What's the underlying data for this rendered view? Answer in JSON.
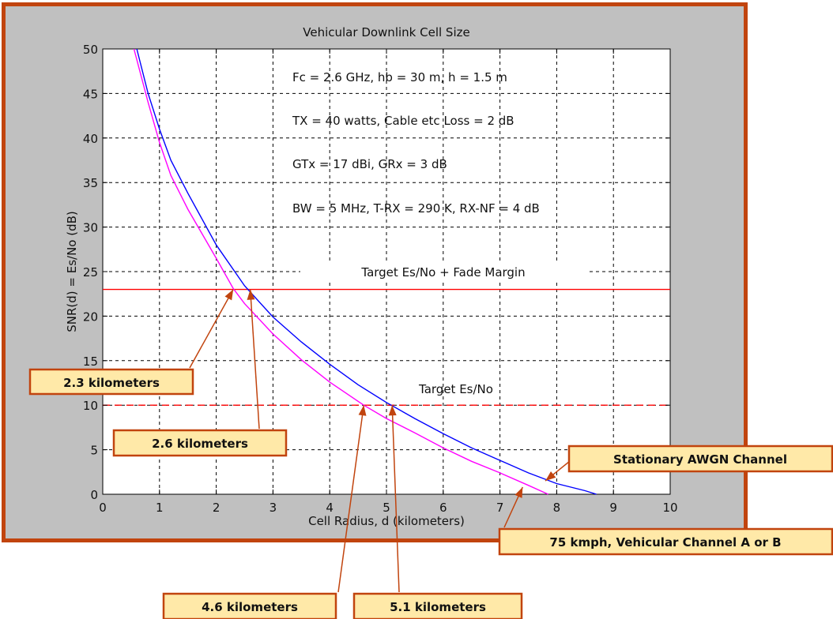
{
  "chart_data": {
    "type": "line",
    "title": "Vehicular Downlink Cell Size",
    "xlabel": "Cell Radius, d   (kilometers)",
    "ylabel": "SNR(d) = Es/No  (dB)",
    "xlim": [
      0,
      10
    ],
    "ylim": [
      0,
      50
    ],
    "xticks": [
      "0",
      "1",
      "2",
      "3",
      "4",
      "5",
      "6",
      "7",
      "8",
      "9",
      "10"
    ],
    "yticks": [
      "0",
      "5",
      "10",
      "15",
      "20",
      "25",
      "30",
      "35",
      "40",
      "45",
      "50"
    ],
    "grid": true,
    "series": [
      {
        "color": "#0000ff",
        "x": [
          0.6,
          0.8,
          1.0,
          1.2,
          1.5,
          2.0,
          2.5,
          3.0,
          3.5,
          4.0,
          4.5,
          5.0,
          5.5,
          6.0,
          6.5,
          7.0,
          7.5,
          8.0,
          8.5,
          8.7
        ],
        "y": [
          50.0,
          45.0,
          41.0,
          37.5,
          33.8,
          28.0,
          23.4,
          19.9,
          17.1,
          14.6,
          12.3,
          10.3,
          8.5,
          6.8,
          5.2,
          3.8,
          2.4,
          1.2,
          0.4,
          0.0
        ]
      },
      {
        "color": "#ff00ff",
        "x": [
          0.55,
          0.8,
          1.0,
          1.2,
          1.5,
          2.0,
          2.3,
          2.5,
          3.0,
          3.5,
          4.0,
          4.6,
          5.0,
          5.5,
          6.0,
          6.5,
          7.0,
          7.5,
          7.85
        ],
        "y": [
          50.0,
          44.0,
          39.5,
          35.8,
          32.0,
          26.5,
          23.1,
          21.4,
          18.0,
          15.1,
          12.6,
          10.0,
          8.5,
          6.9,
          5.2,
          3.7,
          2.4,
          1.0,
          0.0
        ]
      }
    ],
    "reference_lines": [
      {
        "y": 23,
        "style": "solid",
        "color": "#ff0000",
        "label": "Target Es/No + Fade Margin"
      },
      {
        "y": 10,
        "style": "dashed",
        "color": "#ff0000",
        "label": "Target Es/No"
      }
    ],
    "annotations": [
      "Fc =  2.6 GHz,  hb =  30 m,   h = 1.5 m",
      "TX = 40 watts,  Cable etc Loss =  2 dB",
      "GTx = 17 dBi,   GRx =  3 dB",
      "BW = 5 MHz,  T-RX = 290 K,   RX-NF =  4 dB"
    ],
    "callouts": [
      {
        "text": "2.3 kilometers",
        "x": 2.3,
        "y": 23
      },
      {
        "text": "2.6 kilometers",
        "x": 2.6,
        "y": 23
      },
      {
        "text": "4.6 kilometers",
        "x": 4.6,
        "y": 10
      },
      {
        "text": "5.1 kilometers",
        "x": 5.1,
        "y": 10
      },
      {
        "text": "Stationary AWGN Channel",
        "x": 7.8,
        "y": 1.5
      },
      {
        "text": "75 kmph, Vehicular Channel A or B",
        "x": 7.4,
        "y": 0.8
      }
    ]
  }
}
